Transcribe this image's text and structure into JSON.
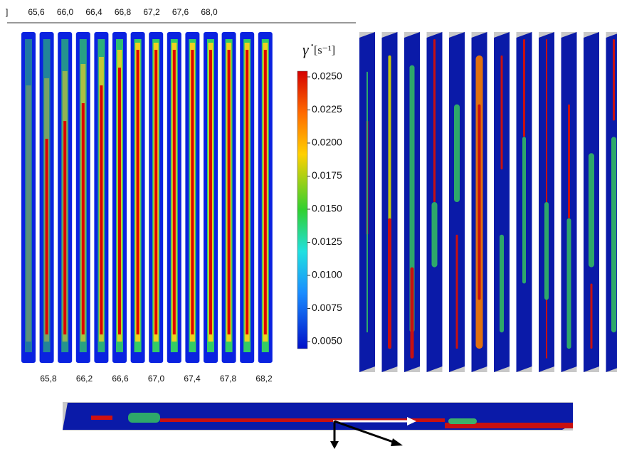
{
  "top_labels": {
    "bracket": "]",
    "values": [
      "65,6",
      "66,0",
      "66,4",
      "66,8",
      "67,2",
      "67,6",
      "68,0"
    ]
  },
  "bottom_labels": [
    "65,8",
    "66,2",
    "66,6",
    "67,0",
    "67,4",
    "67,8",
    "68,2"
  ],
  "colorbar": {
    "symbol": "γ̇",
    "unit": "[s⁻¹]",
    "ticks": [
      "0.0250",
      "0.0225",
      "0.0200",
      "0.0175",
      "0.0150",
      "0.0125",
      "0.0100",
      "0.0075",
      "0.0050"
    ]
  }
}
